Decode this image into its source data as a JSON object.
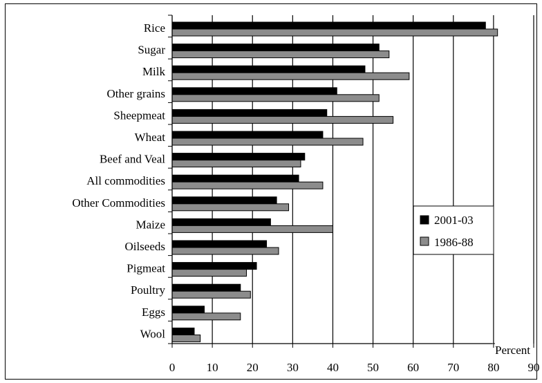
{
  "chart_data": {
    "type": "bar",
    "orientation": "horizontal",
    "categories": [
      "Rice",
      "Sugar",
      "Milk",
      "Other grains",
      "Sheepmeat",
      "Wheat",
      "Beef and Veal",
      "All commodities",
      "Other Commodities",
      "Maize",
      "Oilseeds",
      "Pigmeat",
      "Poultry",
      "Eggs",
      "Wool"
    ],
    "series": [
      {
        "name": "2001-03",
        "color": "#000000",
        "values": [
          78,
          51.5,
          48,
          41,
          38.5,
          37.5,
          33,
          31.5,
          26,
          24.5,
          23.5,
          21,
          17,
          8,
          5.5
        ]
      },
      {
        "name": "1986-88",
        "color": "#8c8c8c",
        "values": [
          81,
          54,
          59,
          51.5,
          55,
          47.5,
          32,
          37.5,
          29,
          40,
          26.5,
          18.5,
          19.5,
          17,
          7
        ]
      }
    ],
    "xlabel": "Percent",
    "xlim": [
      0,
      90
    ],
    "xticks": [
      0,
      10,
      20,
      30,
      40,
      50,
      60,
      70,
      80,
      90
    ],
    "grid": "vertical",
    "legend_position": "right"
  }
}
